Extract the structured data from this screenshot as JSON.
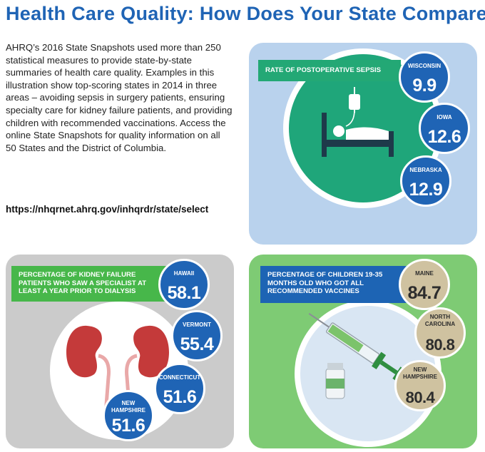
{
  "title": "Health Care Quality: How Does Your State Compare?",
  "intro": "AHRQ’s 2016 State Snapshots used more than 250 statistical measures to provide state-by-state summaries of health care quality. Examples in this illustration show top-scoring states in 2014 in three areas – avoiding sepsis in surgery patients, ensuring specialty care for kidney failure patients, and providing children with recommended vaccinations. Access the online State Snapshots for quality information on all 50 States and the District of Columbia.",
  "url": "https://nhqrnet.ahrq.gov/inhqrdr/state/select",
  "colors": {
    "title": "#1f64b5",
    "blue_badge": "#1f64b5",
    "tan_badge": "#cfc2a0",
    "green": "#23a875"
  },
  "sepsis": {
    "label": "Rate of Postoperative Sepsis",
    "icon": "hospital-bed-icon",
    "states": [
      {
        "name": "Wisconsin",
        "value": "9.9"
      },
      {
        "name": "Iowa",
        "value": "12.6"
      },
      {
        "name": "Nebraska",
        "value": "12.9"
      }
    ]
  },
  "kidney": {
    "label": "Percentage of Kidney Failure Patients Who Saw a Specialist at Least a Year Prior to Dialysis",
    "icon": "kidneys-icon",
    "states": [
      {
        "name": "Hawaii",
        "value": "58.1"
      },
      {
        "name": "Vermont",
        "value": "55.4"
      },
      {
        "name": "Connecticut",
        "value": "51.6"
      },
      {
        "name": "New Hampshire",
        "value": "51.6"
      }
    ]
  },
  "vaccines": {
    "label": "Percentage of Children 19-35 Months Old Who Got All Recommended Vaccines",
    "icon": "syringe-icon",
    "states": [
      {
        "name": "Maine",
        "value": "84.7"
      },
      {
        "name": "North Carolina",
        "value": "80.8"
      },
      {
        "name": "New Hampshire",
        "value": "80.4"
      }
    ]
  }
}
